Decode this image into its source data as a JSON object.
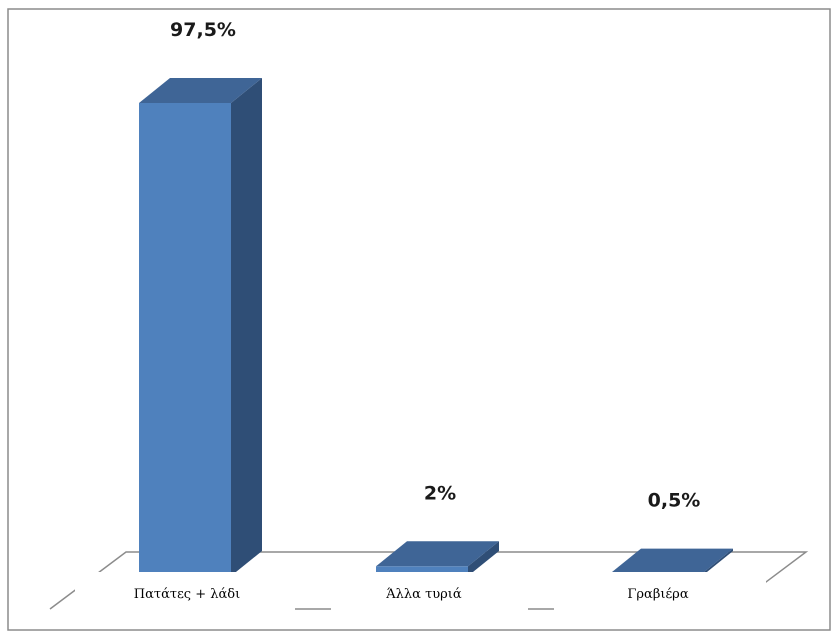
{
  "chart_data": {
    "type": "bar",
    "categories": [
      "Πατάτες + λάδι",
      "Άλλα τυριά",
      "Γραβιέρα"
    ],
    "values": [
      97.5,
      2,
      0.5
    ],
    "data_labels": [
      "97,5%",
      "2%",
      "0,5%"
    ],
    "ylim": [
      0,
      100
    ],
    "grid": false,
    "legend": "none",
    "three_d": true,
    "colors": {
      "bar_front": "#4f81bd",
      "bar_side": "#2f4e76",
      "bar_top": "#3f6596",
      "frame": "#8c8c8c",
      "floor": "#7f7f7f"
    }
  }
}
